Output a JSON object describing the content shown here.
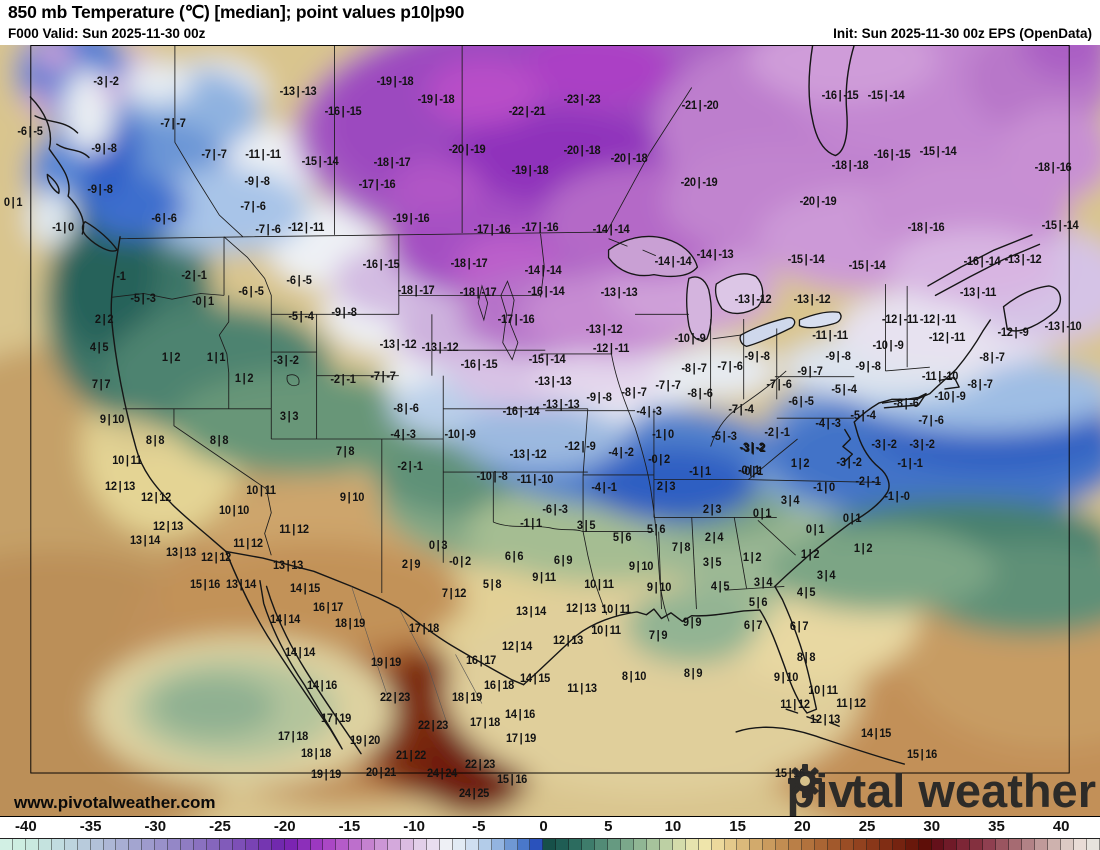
{
  "header": {
    "title": "850 mb Temperature (℃) [median]; point values p10|p90",
    "valid": "F000 Valid: Sun 2025-11-30 00z",
    "init": "Init: Sun 2025-11-30 00z EPS (OpenData)"
  },
  "branding": {
    "url": "www.pivotalweather.com",
    "brand_pre": "piv",
    "brand_post": "tal weather"
  },
  "colorbar": {
    "min": -42,
    "max": 43,
    "ticks": [
      -40,
      -35,
      -30,
      -25,
      -20,
      -15,
      -10,
      -5,
      0,
      5,
      10,
      15,
      20,
      25,
      30,
      35,
      40
    ],
    "colors": [
      "#d2f0e4",
      "#cdeee1",
      "#c9e9df",
      "#c5e3df",
      "#c1dce0",
      "#bdd4de",
      "#b8cbdc",
      "#b2c1d9",
      "#adb7d6",
      "#a8aed3",
      "#a3a5d0",
      "#9e9bcd",
      "#9991ca",
      "#9487c7",
      "#8f7cc3",
      "#8a71c0",
      "#8566bd",
      "#815bba",
      "#7d4fb7",
      "#7943b4",
      "#7536b1",
      "#7129ae",
      "#7b24b2",
      "#8c2fba",
      "#9c38c0",
      "#aa47c5",
      "#b55bc9",
      "#bd6fcc",
      "#c582d0",
      "#cc96d6",
      "#d4a9dc",
      "#dbbce2",
      "#e2cfe9",
      "#e8ddef",
      "#eef0f5",
      "#e2ebf4",
      "#cfdef0",
      "#b3cce9",
      "#93b4e0",
      "#6f98d4",
      "#4a78ca",
      "#2a52bc",
      "#175049",
      "#1f5d54",
      "#2c6c5f",
      "#3e7c6b",
      "#528b76",
      "#669a81",
      "#7ba88b",
      "#90b694",
      "#a6c39c",
      "#bdd0a4",
      "#d4dcab",
      "#e6e3ae",
      "#efe5ab",
      "#ecd99c",
      "#e4c98b",
      "#dbb97b",
      "#d2aa6c",
      "#ca9b5e",
      "#c28d52",
      "#ba7f47",
      "#b2723d",
      "#aa6534",
      "#a2592c",
      "#9a4d25",
      "#92421f",
      "#893719",
      "#802d14",
      "#752310",
      "#69180b",
      "#5e0e08",
      "#64101a",
      "#701a28",
      "#7d2636",
      "#84303f",
      "#8f3f50",
      "#9a5560",
      "#a66b72",
      "#b28286",
      "#c09a9a",
      "#ceb2ae",
      "#dccac4",
      "#e9dcd6",
      "#e7e3dd"
    ]
  },
  "map": {
    "points": [
      [
        106,
        82,
        "-3|-2"
      ],
      [
        298,
        92,
        "-13|-13"
      ],
      [
        30,
        132,
        "-6|-5"
      ],
      [
        173,
        124,
        "-7|-7"
      ],
      [
        343,
        112,
        "-16|-15"
      ],
      [
        104,
        149,
        "-9|-8"
      ],
      [
        214,
        155,
        "-7|-7"
      ],
      [
        263,
        155,
        "-11|-11"
      ],
      [
        320,
        162,
        "-15|-14"
      ],
      [
        100,
        190,
        "-9|-8"
      ],
      [
        257,
        182,
        "-9|-8"
      ],
      [
        253,
        207,
        "-7|-6"
      ],
      [
        13,
        203,
        "0|1"
      ],
      [
        164,
        219,
        "-6|-6"
      ],
      [
        63,
        228,
        "-1|0"
      ],
      [
        306,
        228,
        "-12|-11"
      ],
      [
        268,
        230,
        "-7|-6"
      ],
      [
        395,
        82,
        "-19|-18"
      ],
      [
        436,
        100,
        "-19|-18"
      ],
      [
        527,
        112,
        "-22|-21"
      ],
      [
        582,
        100,
        "-23|-23"
      ],
      [
        700,
        106,
        "-21|-20"
      ],
      [
        467,
        150,
        "-20|-19"
      ],
      [
        582,
        151,
        "-20|-18"
      ],
      [
        629,
        159,
        "-20|-18"
      ],
      [
        392,
        163,
        "-18|-17"
      ],
      [
        530,
        171,
        "-19|-18"
      ],
      [
        377,
        185,
        "-17|-16"
      ],
      [
        699,
        183,
        "-20|-19"
      ],
      [
        411,
        219,
        "-19|-16"
      ],
      [
        492,
        230,
        "-17|-16"
      ],
      [
        540,
        228,
        "-17|-16"
      ],
      [
        611,
        230,
        "-14|-14"
      ],
      [
        840,
        96,
        "-16|-15"
      ],
      [
        886,
        96,
        "-15|-14"
      ],
      [
        892,
        155,
        "-16|-15"
      ],
      [
        938,
        152,
        "-15|-14"
      ],
      [
        850,
        166,
        "-18|-18"
      ],
      [
        1053,
        168,
        "-18|-16"
      ],
      [
        818,
        202,
        "-20|-19"
      ],
      [
        926,
        228,
        "-18|-16"
      ],
      [
        1060,
        226,
        "-15|-14"
      ],
      [
        121,
        277,
        "-1"
      ],
      [
        194,
        276,
        "-2|-1"
      ],
      [
        299,
        281,
        "-6|-5"
      ],
      [
        143,
        299,
        "-5|-3"
      ],
      [
        251,
        292,
        "-6|-5"
      ],
      [
        203,
        302,
        "-0|1"
      ],
      [
        104,
        320,
        "2|2"
      ],
      [
        301,
        317,
        "-5|-4"
      ],
      [
        344,
        313,
        "-9|-8"
      ],
      [
        99,
        348,
        "4|5"
      ],
      [
        171,
        358,
        "1|2"
      ],
      [
        216,
        358,
        "1|1"
      ],
      [
        286,
        361,
        "-3|-2"
      ],
      [
        244,
        379,
        "1|2"
      ],
      [
        343,
        380,
        "-2|-1"
      ],
      [
        101,
        385,
        "7|7"
      ],
      [
        112,
        420,
        "9|10"
      ],
      [
        289,
        417,
        "3|3"
      ],
      [
        381,
        265,
        "-16|-15"
      ],
      [
        469,
        264,
        "-18|-17"
      ],
      [
        543,
        271,
        "-14|-14"
      ],
      [
        673,
        262,
        "-14|-14"
      ],
      [
        715,
        255,
        "-14|-13"
      ],
      [
        416,
        291,
        "-18|-17"
      ],
      [
        478,
        293,
        "-18|-17"
      ],
      [
        546,
        292,
        "-16|-14"
      ],
      [
        619,
        293,
        "-13|-13"
      ],
      [
        516,
        320,
        "-17|-16"
      ],
      [
        604,
        330,
        "-13|-12"
      ],
      [
        398,
        345,
        "-13|-12"
      ],
      [
        440,
        348,
        "-13|-12"
      ],
      [
        690,
        339,
        "-10|-9"
      ],
      [
        611,
        349,
        "-12|-11"
      ],
      [
        479,
        365,
        "-16|-15"
      ],
      [
        547,
        360,
        "-15|-14"
      ],
      [
        694,
        369,
        "-8|-7"
      ],
      [
        553,
        382,
        "-13|-13"
      ],
      [
        383,
        377,
        "-7|-7"
      ],
      [
        599,
        398,
        "-9|-8"
      ],
      [
        634,
        393,
        "-8|-7"
      ],
      [
        668,
        386,
        "-7|-7"
      ],
      [
        700,
        394,
        "-8|-6"
      ],
      [
        406,
        409,
        "-8|-6"
      ],
      [
        561,
        405,
        "-13|-13"
      ],
      [
        521,
        412,
        "-16|-14"
      ],
      [
        649,
        412,
        "-4|-3"
      ],
      [
        806,
        260,
        "-15|-14"
      ],
      [
        867,
        266,
        "-15|-14"
      ],
      [
        982,
        262,
        "-16|-14"
      ],
      [
        1023,
        260,
        "-13|-12"
      ],
      [
        753,
        300,
        "-13|-12"
      ],
      [
        812,
        300,
        "-13|-12"
      ],
      [
        978,
        293,
        "-13|-11"
      ],
      [
        900,
        320,
        "-12|-11"
      ],
      [
        938,
        320,
        "-12|-11"
      ],
      [
        830,
        336,
        "-11|-11"
      ],
      [
        947,
        338,
        "-12|-11"
      ],
      [
        1013,
        333,
        "-12|-9"
      ],
      [
        1063,
        327,
        "-13|-10"
      ],
      [
        888,
        346,
        "-10|-9"
      ],
      [
        757,
        357,
        "-9|-8"
      ],
      [
        838,
        357,
        "-9|-8"
      ],
      [
        992,
        358,
        "-8|-7"
      ],
      [
        868,
        367,
        "-9|-8"
      ],
      [
        810,
        372,
        "-9|-7"
      ],
      [
        730,
        367,
        "-7|-6"
      ],
      [
        779,
        385,
        "-7|-6"
      ],
      [
        940,
        377,
        "-11|-10"
      ],
      [
        980,
        385,
        "-8|-7"
      ],
      [
        844,
        390,
        "-5|-4"
      ],
      [
        801,
        402,
        "-6|-5"
      ],
      [
        950,
        397,
        "-10|-9"
      ],
      [
        741,
        410,
        "-7|-4"
      ],
      [
        906,
        404,
        "-8|-6"
      ],
      [
        863,
        416,
        "-5|-4"
      ],
      [
        828,
        424,
        "-4|-3"
      ],
      [
        931,
        421,
        "-7|-6"
      ],
      [
        403,
        435,
        "-4|-3"
      ],
      [
        460,
        435,
        "-10|-9"
      ],
      [
        580,
        447,
        "-12|-9"
      ],
      [
        528,
        455,
        "-13|-12"
      ],
      [
        410,
        467,
        "-2|-1"
      ],
      [
        492,
        477,
        "-10|-8"
      ],
      [
        535,
        480,
        "-11|-10"
      ],
      [
        663,
        435,
        "-1|0"
      ],
      [
        724,
        437,
        "-5|-3"
      ],
      [
        621,
        453,
        "-4|-2"
      ],
      [
        753,
        449,
        "-3|-2"
      ],
      [
        659,
        460,
        "-0|2"
      ],
      [
        700,
        472,
        "-1|1"
      ],
      [
        752,
        472,
        "-0|1"
      ],
      [
        666,
        487,
        "2|3"
      ],
      [
        712,
        510,
        "2|3"
      ],
      [
        604,
        488,
        "-4|-1"
      ],
      [
        555,
        510,
        "-6|-3"
      ],
      [
        531,
        524,
        "-1|1"
      ],
      [
        586,
        526,
        "3|5"
      ],
      [
        622,
        538,
        "5|6"
      ],
      [
        656,
        530,
        "5|6"
      ],
      [
        714,
        538,
        "2|4"
      ],
      [
        438,
        546,
        "0|3"
      ],
      [
        681,
        548,
        "7|8"
      ],
      [
        712,
        563,
        "3|5"
      ],
      [
        460,
        562,
        "-0|2"
      ],
      [
        411,
        565,
        "2|9"
      ],
      [
        514,
        557,
        "6|6"
      ],
      [
        563,
        561,
        "6|9"
      ],
      [
        641,
        567,
        "9|10"
      ],
      [
        544,
        578,
        "9|11"
      ],
      [
        492,
        585,
        "5|8"
      ],
      [
        599,
        585,
        "10|11"
      ],
      [
        659,
        588,
        "9|10"
      ],
      [
        720,
        587,
        "4|5"
      ],
      [
        454,
        594,
        "7|12"
      ],
      [
        531,
        612,
        "13|14"
      ],
      [
        581,
        609,
        "12|13"
      ],
      [
        616,
        610,
        "10|11"
      ],
      [
        155,
        441,
        "8|8"
      ],
      [
        219,
        441,
        "8|8"
      ],
      [
        345,
        452,
        "7|8"
      ],
      [
        127,
        461,
        "10|11"
      ],
      [
        120,
        487,
        "12|13"
      ],
      [
        156,
        498,
        "12|12"
      ],
      [
        261,
        491,
        "10|11"
      ],
      [
        352,
        498,
        "9|10"
      ],
      [
        234,
        511,
        "10|10"
      ],
      [
        168,
        527,
        "12|13"
      ],
      [
        294,
        530,
        "11|12"
      ],
      [
        145,
        541,
        "13|14"
      ],
      [
        248,
        544,
        "11|12"
      ],
      [
        181,
        553,
        "13|13"
      ],
      [
        216,
        558,
        "12|12"
      ],
      [
        288,
        566,
        "13|13"
      ],
      [
        205,
        585,
        "15|16"
      ],
      [
        241,
        585,
        "13|14"
      ],
      [
        305,
        589,
        "14|15"
      ],
      [
        328,
        608,
        "16|17"
      ],
      [
        285,
        620,
        "14|14"
      ],
      [
        350,
        624,
        "18|19"
      ],
      [
        300,
        653,
        "14|14"
      ],
      [
        322,
        686,
        "14|16"
      ],
      [
        336,
        719,
        "17|19"
      ],
      [
        293,
        737,
        "17|18"
      ],
      [
        316,
        754,
        "18|18"
      ],
      [
        326,
        775,
        "19|19"
      ],
      [
        365,
        741,
        "19|20"
      ],
      [
        424,
        629,
        "17|18"
      ],
      [
        517,
        647,
        "12|14"
      ],
      [
        568,
        641,
        "12|13"
      ],
      [
        606,
        631,
        "10|11"
      ],
      [
        658,
        636,
        "7|9"
      ],
      [
        692,
        623,
        "9|9"
      ],
      [
        386,
        663,
        "19|19"
      ],
      [
        481,
        661,
        "16|17"
      ],
      [
        535,
        679,
        "14|15"
      ],
      [
        634,
        677,
        "8|10"
      ],
      [
        693,
        674,
        "8|9"
      ],
      [
        499,
        686,
        "16|18"
      ],
      [
        582,
        689,
        "11|13"
      ],
      [
        395,
        698,
        "22|23"
      ],
      [
        467,
        698,
        "18|19"
      ],
      [
        520,
        715,
        "14|16"
      ],
      [
        433,
        726,
        "22|23"
      ],
      [
        485,
        723,
        "17|18"
      ],
      [
        521,
        739,
        "17|19"
      ],
      [
        411,
        756,
        "21|22"
      ],
      [
        480,
        765,
        "22|23"
      ],
      [
        381,
        773,
        "20|21"
      ],
      [
        442,
        774,
        "24|24"
      ],
      [
        512,
        780,
        "15|16"
      ],
      [
        474,
        794,
        "24|25"
      ],
      [
        777,
        433,
        "-2|-1"
      ],
      [
        752,
        448,
        "-3|-2"
      ],
      [
        884,
        445,
        "-3|-2"
      ],
      [
        922,
        445,
        "-3|-2"
      ],
      [
        800,
        464,
        "1|2"
      ],
      [
        749,
        471,
        "-0|1"
      ],
      [
        849,
        463,
        "-3|-2"
      ],
      [
        910,
        464,
        "-1|-1"
      ],
      [
        868,
        482,
        "-2|-1"
      ],
      [
        824,
        488,
        "-1|0"
      ],
      [
        897,
        497,
        "-1|-0"
      ],
      [
        790,
        501,
        "3|4"
      ],
      [
        762,
        514,
        "0|1"
      ],
      [
        852,
        519,
        "0|1"
      ],
      [
        815,
        530,
        "0|1"
      ],
      [
        752,
        558,
        "1|2"
      ],
      [
        810,
        555,
        "1|2"
      ],
      [
        863,
        549,
        "1|2"
      ],
      [
        763,
        583,
        "3|4"
      ],
      [
        826,
        576,
        "3|4"
      ],
      [
        806,
        593,
        "4|5"
      ],
      [
        758,
        603,
        "5|6"
      ],
      [
        753,
        626,
        "6|7"
      ],
      [
        799,
        627,
        "6|7"
      ],
      [
        806,
        658,
        "8|8"
      ],
      [
        786,
        678,
        "9|10"
      ],
      [
        823,
        691,
        "10|11"
      ],
      [
        795,
        705,
        "11|12"
      ],
      [
        851,
        704,
        "11|12"
      ],
      [
        825,
        720,
        "12|13"
      ],
      [
        876,
        734,
        "14|15"
      ],
      [
        922,
        755,
        "15|16"
      ],
      [
        790,
        774,
        "15|16"
      ]
    ]
  }
}
